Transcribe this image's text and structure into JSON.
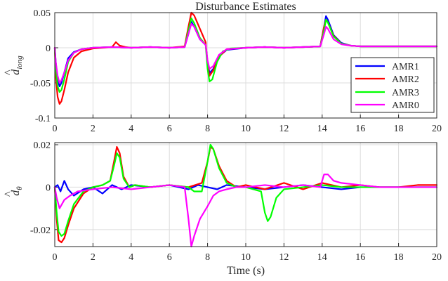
{
  "chart_data": [
    {
      "type": "line",
      "title": "Disturbance Estimates",
      "xlabel": "",
      "ylabel": "d̂long",
      "ylabel_main": "d",
      "ylabel_sub": "long",
      "xlim": [
        0,
        20
      ],
      "ylim": [
        -0.1,
        0.05
      ],
      "xticks": [
        0,
        2,
        4,
        6,
        8,
        10,
        12,
        14,
        16,
        18,
        20
      ],
      "yticks": [
        -0.1,
        -0.05,
        0,
        0.05
      ],
      "ytick_labels": [
        "-0.1",
        "-0.05",
        "0",
        "0.05"
      ],
      "grid": true,
      "legend": "right",
      "series": [
        {
          "name": "AMR1",
          "color": "#0000ff",
          "x": [
            0,
            0.05,
            0.15,
            0.25,
            0.35,
            0.5,
            0.7,
            1.0,
            1.4,
            2,
            3,
            4,
            5,
            6,
            6.8,
            7.0,
            7.15,
            7.3,
            7.6,
            7.9,
            8.0,
            8.1,
            8.3,
            8.6,
            9.0,
            10,
            11,
            12,
            13,
            13.9,
            14.1,
            14.2,
            14.3,
            14.6,
            15,
            15.5,
            16,
            17,
            18,
            19,
            20
          ],
          "y": [
            0,
            -0.02,
            -0.045,
            -0.055,
            -0.05,
            -0.035,
            -0.015,
            -0.006,
            -0.002,
            0,
            0.001,
            0,
            0.001,
            0,
            0.001,
            0.02,
            0.037,
            0.03,
            0.012,
            0.004,
            -0.02,
            -0.036,
            -0.03,
            -0.012,
            -0.003,
            0,
            0.001,
            0,
            0.001,
            0.002,
            0.03,
            0.045,
            0.04,
            0.018,
            0.007,
            0.003,
            0.002,
            0.002,
            0.002,
            0.002,
            0.002
          ]
        },
        {
          "name": "AMR2",
          "color": "#ff0000",
          "x": [
            0,
            0.05,
            0.15,
            0.25,
            0.35,
            0.5,
            0.7,
            1.0,
            1.4,
            2,
            3,
            3.2,
            3.4,
            3.7,
            4,
            5,
            6,
            6.8,
            7.0,
            7.15,
            7.3,
            7.6,
            7.9,
            8.0,
            8.1,
            8.3,
            8.6,
            9.0,
            10,
            11,
            12,
            13,
            13.9,
            14.1,
            14.2,
            14.3,
            14.6,
            15,
            15.5,
            16,
            17,
            18,
            19,
            20
          ],
          "y": [
            0,
            -0.04,
            -0.07,
            -0.08,
            -0.076,
            -0.06,
            -0.035,
            -0.014,
            -0.005,
            -0.001,
            0.001,
            0.008,
            0.003,
            0.001,
            0,
            0.001,
            0,
            0.002,
            0.03,
            0.05,
            0.046,
            0.027,
            0.008,
            -0.025,
            -0.04,
            -0.032,
            -0.013,
            -0.002,
            0,
            0.001,
            0,
            0.001,
            0.002,
            0.03,
            0.04,
            0.036,
            0.017,
            0.006,
            0.003,
            0.002,
            0.002,
            0.002,
            0.002,
            0.002
          ]
        },
        {
          "name": "AMR3",
          "color": "#00ff00",
          "x": [
            0,
            0.05,
            0.15,
            0.25,
            0.35,
            0.5,
            0.7,
            1.0,
            1.4,
            2,
            3,
            4,
            5,
            6,
            6.8,
            7.0,
            7.15,
            7.3,
            7.6,
            7.9,
            8.0,
            8.1,
            8.25,
            8.5,
            8.8,
            9.2,
            10,
            11,
            12,
            13,
            13.9,
            14.1,
            14.2,
            14.3,
            14.6,
            15,
            15.5,
            16,
            17,
            18,
            19,
            20
          ],
          "y": [
            0,
            -0.03,
            -0.055,
            -0.063,
            -0.06,
            -0.045,
            -0.02,
            -0.007,
            -0.002,
            0,
            0.001,
            0,
            0.001,
            0,
            0.001,
            0.025,
            0.042,
            0.035,
            0.014,
            0.004,
            -0.03,
            -0.048,
            -0.045,
            -0.02,
            -0.005,
            -0.001,
            0,
            0.001,
            0,
            0.001,
            0.002,
            0.025,
            0.04,
            0.036,
            0.016,
            0.006,
            0.003,
            0.002,
            0.002,
            0.002,
            0.002,
            0.002
          ]
        },
        {
          "name": "AMR0",
          "color": "#ff00ff",
          "x": [
            0,
            0.05,
            0.15,
            0.25,
            0.35,
            0.5,
            0.7,
            1.0,
            1.4,
            2,
            3,
            4,
            5,
            6,
            6.8,
            7.0,
            7.15,
            7.3,
            7.6,
            7.9,
            8.0,
            8.1,
            8.3,
            8.6,
            9.0,
            10,
            11,
            12,
            13,
            13.9,
            14.1,
            14.2,
            14.3,
            14.6,
            15,
            15.5,
            16,
            17,
            18,
            19,
            20
          ],
          "y": [
            0,
            -0.02,
            -0.04,
            -0.05,
            -0.046,
            -0.035,
            -0.018,
            -0.007,
            -0.002,
            0,
            0.001,
            0,
            0.001,
            0,
            0.001,
            0.02,
            0.034,
            0.03,
            0.012,
            0.004,
            -0.018,
            -0.03,
            -0.026,
            -0.01,
            -0.002,
            0,
            0.001,
            0,
            0.001,
            0.002,
            0.02,
            0.03,
            0.027,
            0.012,
            0.005,
            0.003,
            0.002,
            0.002,
            0.002,
            0.002,
            0.002
          ]
        }
      ]
    },
    {
      "type": "line",
      "title": "",
      "xlabel": "Time (s)",
      "ylabel": "d̂θ",
      "ylabel_main": "d",
      "ylabel_sub": "θ",
      "xlim": [
        0,
        20
      ],
      "ylim": [
        -0.028,
        0.021
      ],
      "xticks": [
        0,
        2,
        4,
        6,
        8,
        10,
        12,
        14,
        16,
        18,
        20
      ],
      "yticks": [
        -0.02,
        0,
        0.02
      ],
      "ytick_labels": [
        "-0.02",
        "0",
        "0.02"
      ],
      "grid": true,
      "series": [
        {
          "name": "AMR1",
          "color": "#0000ff",
          "x": [
            0,
            0.15,
            0.3,
            0.5,
            0.7,
            1.0,
            1.5,
            2,
            2.5,
            3,
            3.5,
            4,
            5,
            6,
            7,
            7.5,
            8,
            8.5,
            9,
            10,
            11,
            12,
            13,
            14,
            15,
            16,
            17,
            18,
            19,
            20
          ],
          "y": [
            0,
            0.001,
            -0.002,
            0.003,
            -0.001,
            -0.004,
            -0.001,
            0,
            -0.003,
            0.001,
            -0.001,
            0.001,
            0,
            0.001,
            -0.001,
            0.001,
            0,
            -0.001,
            0.001,
            0,
            -0.001,
            0,
            0.001,
            0,
            -0.001,
            0,
            0,
            0,
            0,
            0
          ]
        },
        {
          "name": "AMR2",
          "color": "#ff0000",
          "x": [
            0,
            0.1,
            0.2,
            0.35,
            0.5,
            0.7,
            1.0,
            1.5,
            2,
            2.5,
            2.9,
            3.1,
            3.25,
            3.4,
            3.6,
            3.9,
            4.2,
            5,
            6,
            7,
            7.7,
            8.0,
            8.15,
            8.3,
            8.6,
            9.0,
            9.5,
            10,
            11,
            12,
            13,
            14,
            15,
            16,
            17,
            18,
            19,
            20
          ],
          "y": [
            0,
            -0.015,
            -0.025,
            -0.026,
            -0.024,
            -0.018,
            -0.01,
            -0.003,
            0,
            0.001,
            0.003,
            0.012,
            0.019,
            0.016,
            0.005,
            0,
            0.001,
            0,
            0.001,
            0,
            0.002,
            0.012,
            0.019,
            0.018,
            0.01,
            0.003,
            0,
            0.001,
            -0.001,
            0.002,
            -0.001,
            0.002,
            0,
            0.001,
            0,
            0,
            0.001,
            0.001
          ]
        },
        {
          "name": "AMR3",
          "color": "#00ff00",
          "x": [
            0,
            0.1,
            0.2,
            0.35,
            0.5,
            0.7,
            1.0,
            1.5,
            2,
            2.5,
            2.9,
            3.1,
            3.25,
            3.4,
            3.6,
            3.9,
            4.2,
            5,
            6,
            7,
            7.3,
            7.7,
            8.0,
            8.15,
            8.3,
            8.6,
            9.0,
            9.5,
            10,
            10.8,
            11.0,
            11.15,
            11.3,
            11.6,
            12,
            13,
            14,
            15,
            16,
            17,
            18,
            19,
            20
          ],
          "y": [
            0,
            -0.012,
            -0.021,
            -0.023,
            -0.022,
            -0.016,
            -0.008,
            -0.002,
            0,
            0.001,
            0.003,
            0.01,
            0.016,
            0.014,
            0.004,
            0,
            0.001,
            0,
            0.001,
            0,
            -0.002,
            -0.002,
            0.012,
            0.02,
            0.018,
            0.009,
            0.002,
            0,
            0,
            -0.002,
            -0.012,
            -0.016,
            -0.014,
            -0.005,
            -0.001,
            0,
            0.001,
            0,
            0,
            0,
            0,
            0,
            0
          ]
        },
        {
          "name": "AMR0",
          "color": "#ff00ff",
          "x": [
            0,
            0.1,
            0.25,
            0.5,
            0.8,
            1.2,
            2,
            3,
            4,
            5,
            6,
            6.8,
            7.0,
            7.15,
            7.3,
            7.6,
            8.0,
            8.3,
            8.6,
            9.0,
            9.5,
            10,
            11,
            12,
            13,
            13.9,
            14.1,
            14.3,
            14.6,
            15,
            16,
            17,
            18,
            19,
            20
          ],
          "y": [
            0,
            -0.005,
            -0.01,
            -0.006,
            -0.004,
            -0.002,
            -0.001,
            0,
            -0.001,
            0,
            0.001,
            0,
            -0.015,
            -0.028,
            -0.023,
            -0.015,
            -0.009,
            -0.004,
            -0.002,
            -0.001,
            0,
            0,
            0.001,
            0,
            0.001,
            0,
            0.006,
            0.006,
            0.003,
            0.002,
            0.001,
            0,
            0,
            0,
            0
          ]
        }
      ]
    }
  ]
}
